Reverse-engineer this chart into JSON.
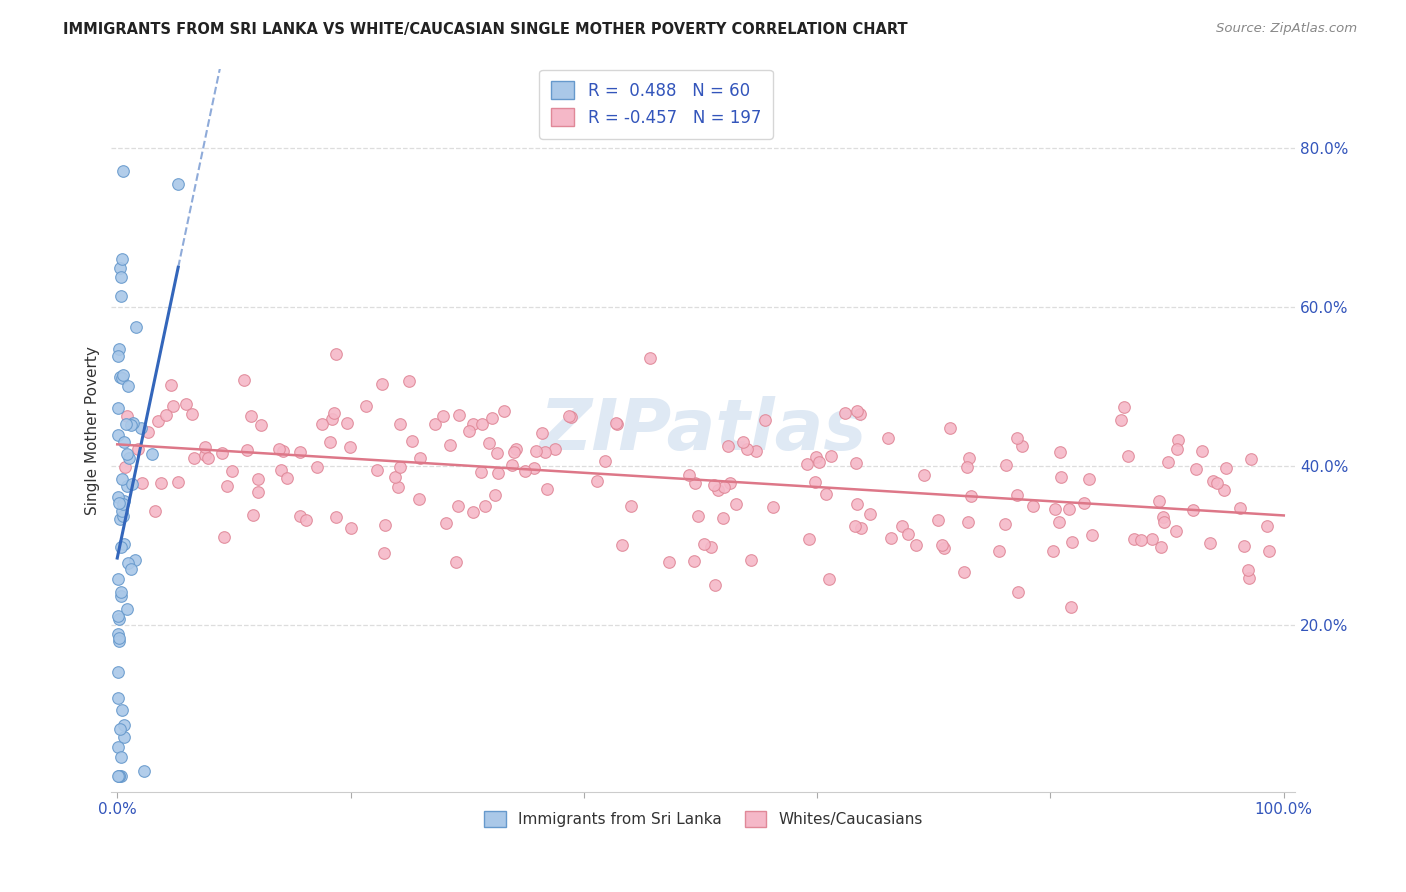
{
  "title": "IMMIGRANTS FROM SRI LANKA VS WHITE/CAUCASIAN SINGLE MOTHER POVERTY CORRELATION CHART",
  "source": "Source: ZipAtlas.com",
  "ylabel": "Single Mother Poverty",
  "blue_R": 0.488,
  "blue_N": 60,
  "pink_R": -0.457,
  "pink_N": 197,
  "blue_color": "#aac8e8",
  "blue_edge_color": "#6699cc",
  "blue_line_color": "#3366bb",
  "pink_color": "#f5b8c8",
  "pink_edge_color": "#e08898",
  "pink_line_color": "#dd7788",
  "watermark": "ZIPatlas",
  "legend_label_blue": "Immigrants from Sri Lanka",
  "legend_label_pink": "Whites/Caucasians",
  "title_color": "#222222",
  "source_color": "#888888",
  "axis_label_color": "#3355bb",
  "grid_color": "#dddddd",
  "ylabel_color": "#333333"
}
